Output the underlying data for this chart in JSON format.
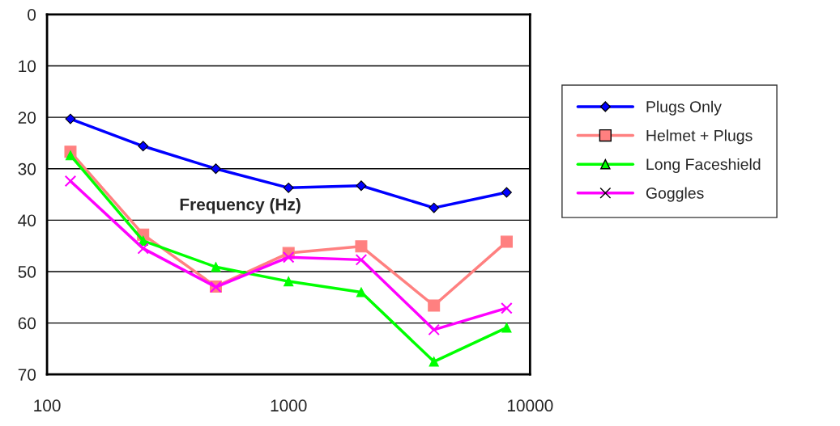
{
  "chart_data": {
    "type": "line",
    "xlabel": "Frequency (Hz)",
    "x": [
      125,
      250,
      500,
      1000,
      2000,
      4000,
      8000
    ],
    "log": "x",
    "xlim": [
      100,
      10000
    ],
    "xticks": [
      100,
      1000,
      10000
    ],
    "ylim": [
      70,
      0
    ],
    "yticks": [
      0,
      10,
      20,
      30,
      40,
      50,
      60,
      70
    ],
    "grid": "y",
    "legend": "right",
    "series": [
      {
        "name": "Plugs Only",
        "color": "#0000ff",
        "marker": "diamond",
        "values": [
          20.3,
          25.6,
          30.0,
          33.7,
          33.3,
          37.6,
          34.6
        ]
      },
      {
        "name": "Helmet + Plugs",
        "color": "#ff8080",
        "marker": "square",
        "values": [
          26.7,
          42.8,
          52.9,
          46.4,
          45.1,
          56.6,
          44.2
        ]
      },
      {
        "name": "Long Faceshield",
        "color": "#00ff00",
        "marker": "triangle",
        "values": [
          27.4,
          44.0,
          49.1,
          51.9,
          54.0,
          67.5,
          60.9
        ]
      },
      {
        "name": "Goggles",
        "color": "#ff00ff",
        "marker": "cross",
        "values": [
          32.4,
          45.5,
          53.0,
          47.2,
          47.7,
          61.3,
          57.1
        ]
      }
    ]
  }
}
